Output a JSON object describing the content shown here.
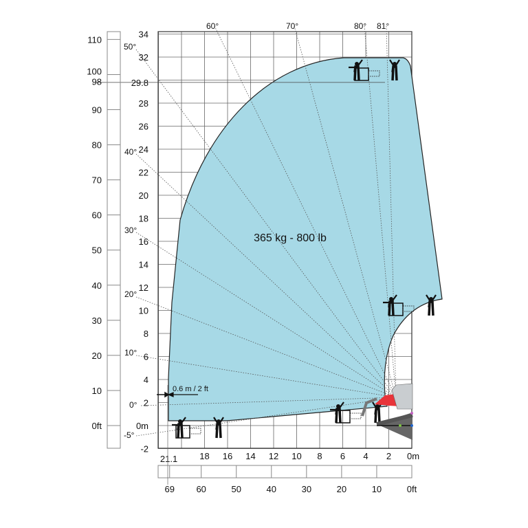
{
  "load_label": "365 kg - 800 lb",
  "offset_label": "0.6 m / 2 ft",
  "y_axis_m": [
    "34",
    "32",
    "29.8",
    "28",
    "26",
    "24",
    "22",
    "20",
    "18",
    "16",
    "14",
    "12",
    "10",
    "8",
    "6",
    "4",
    "2",
    "0m",
    "-2"
  ],
  "y_axis_m_values": [
    34,
    32,
    29.8,
    28,
    26,
    24,
    22,
    20,
    18,
    16,
    14,
    12,
    10,
    8,
    6,
    4,
    2,
    0,
    -2
  ],
  "y_axis_ft": [
    "110",
    "100",
    "98",
    "90",
    "80",
    "70",
    "60",
    "50",
    "40",
    "30",
    "20",
    "10",
    "0ft"
  ],
  "y_axis_ft_values": [
    110,
    100,
    98,
    90,
    80,
    70,
    60,
    50,
    40,
    30,
    20,
    10,
    0
  ],
  "x_axis_m": [
    "21.1",
    "18",
    "16",
    "14",
    "12",
    "10",
    "8",
    "6",
    "4",
    "2",
    "0m"
  ],
  "x_axis_m_values": [
    21.1,
    18,
    16,
    14,
    12,
    10,
    8,
    6,
    4,
    2,
    0
  ],
  "x_axis_ft": [
    "69",
    "60",
    "50",
    "40",
    "30",
    "20",
    "10",
    "0ft"
  ],
  "x_axis_ft_values": [
    69,
    60,
    50,
    40,
    30,
    20,
    10,
    0
  ],
  "angles": [
    "81°",
    "80°",
    "70°",
    "60°",
    "50°",
    "40°",
    "30°",
    "20°",
    "10°",
    "0°",
    "-5°"
  ],
  "max_height_m": 29.8,
  "max_outreach_m": 21.1,
  "colors": {
    "envelope": "#a7d9e6",
    "machine": "#e8343a",
    "grid": "#555555"
  }
}
